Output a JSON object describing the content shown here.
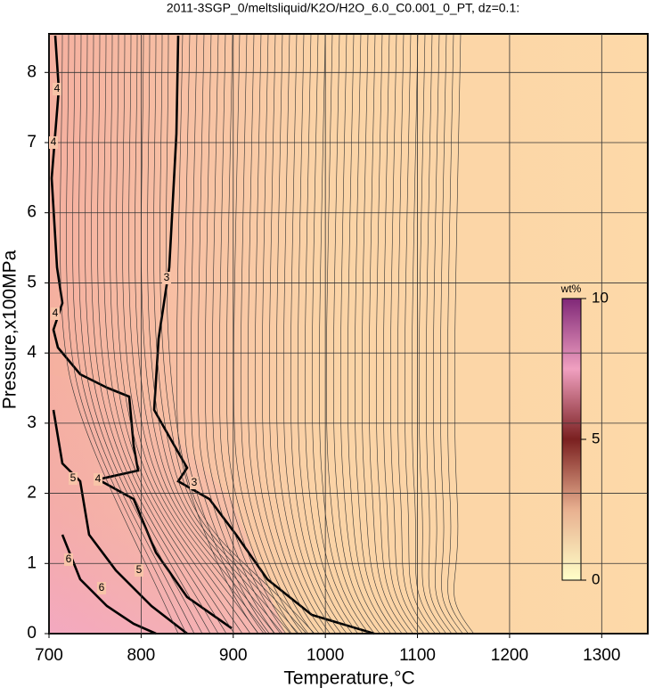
{
  "chart_data": {
    "type": "contour",
    "title": "2011-3SGP_0/meltsliquid/K2O/H2O_6.0_C0.001_0_PT, dz=0.1:",
    "x_label": "Temperature,°C",
    "y_label": "Pressure,x100MPa",
    "xlim": [
      700,
      1350
    ],
    "xticks": [
      700,
      800,
      900,
      1000,
      1100,
      1200,
      1300
    ],
    "ylim": [
      0,
      8.55
    ],
    "yticks": [
      0,
      1,
      2,
      3,
      4,
      5,
      6,
      7,
      8
    ],
    "grid": true,
    "contour_labels": [
      4,
      4,
      4,
      3,
      5,
      4,
      3,
      6,
      5,
      6
    ],
    "colorbar": {
      "label": "wt%",
      "lim": [
        0,
        10
      ],
      "ticks": [
        0,
        5,
        10
      ]
    }
  }
}
